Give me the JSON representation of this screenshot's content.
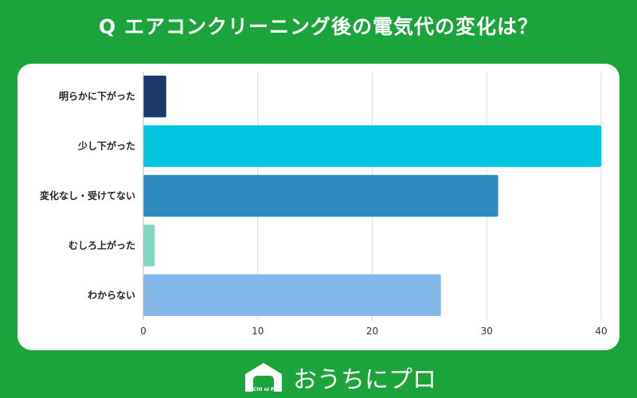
{
  "title": "Q エアコンクリーニング後の電気代の変化は？",
  "chart_data": {
    "type": "bar",
    "orientation": "horizontal",
    "categories": [
      "明らかに下がった",
      "少し下がった",
      "変化なし・受けてない",
      "むしろ上がった",
      "わからない"
    ],
    "values": [
      2,
      40,
      31,
      1,
      26
    ],
    "colors": [
      "#1a3a6b",
      "#00c6e0",
      "#2e8bbf",
      "#7fd9c2",
      "#83b9ea"
    ],
    "xlim": [
      0,
      40
    ],
    "xticks": [
      0,
      10,
      20,
      30,
      40
    ],
    "grid": true
  },
  "logo": {
    "text": "おうちにプロ",
    "sub": "OUCHI ni PRO",
    "icon": "house-icon"
  }
}
